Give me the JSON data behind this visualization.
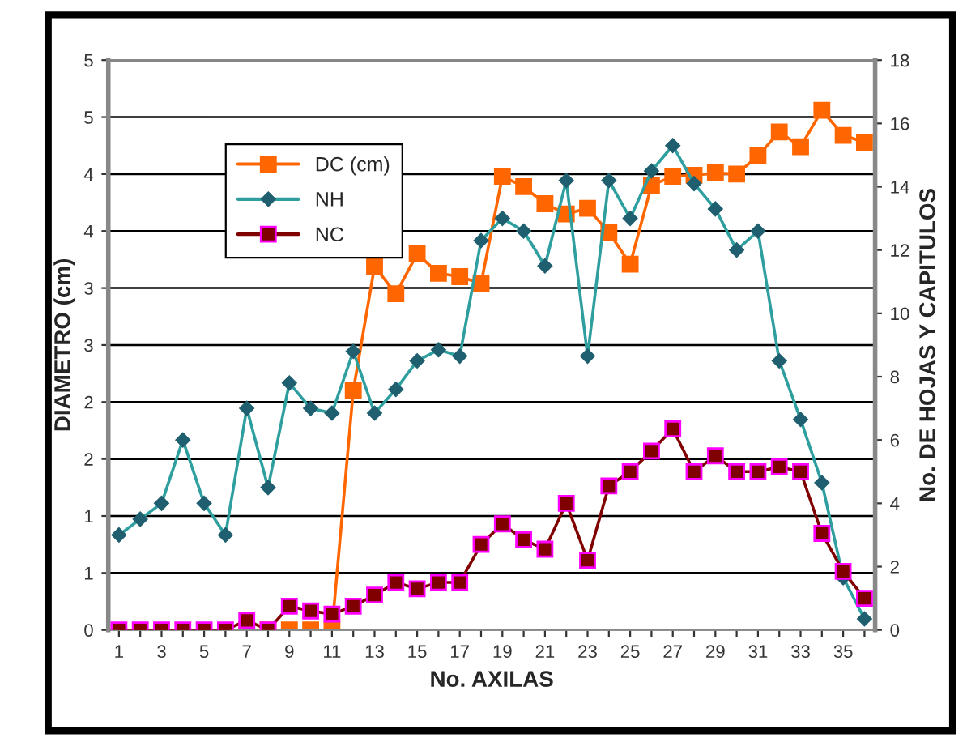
{
  "chart_data": {
    "type": "line",
    "xlabel": "No. AXILAS",
    "ylabel": "DIAMETRO (cm)",
    "y2label": "No. DE HOJAS Y CAPITULOS",
    "categories": [
      "1",
      null,
      "3",
      null,
      "5",
      null,
      "7",
      null,
      "9",
      null,
      "11",
      null,
      "13",
      null,
      "15",
      null,
      "17",
      null,
      "19",
      null,
      "21",
      null,
      "23",
      null,
      "25",
      null,
      "27",
      null,
      "29",
      null,
      "31",
      null,
      "33",
      null,
      "35",
      null
    ],
    "series": [
      {
        "name": "DC (cm)",
        "color": "#ff6600",
        "marker": "square",
        "values": [
          null,
          null,
          null,
          null,
          null,
          null,
          0,
          0,
          0,
          0,
          0,
          2.1,
          3.19,
          2.95,
          3.3,
          3.13,
          3.1,
          3.04,
          3.98,
          3.89,
          3.74,
          3.65,
          3.7,
          3.49,
          3.21,
          3.9,
          3.98,
          3.99,
          4.01,
          4.0,
          4.16,
          4.37,
          4.24,
          4.56,
          4.34,
          4.28
        ]
      },
      {
        "name": "NH",
        "color": "#2e9e9e",
        "marker": "diamond",
        "axis": "y2",
        "values": [
          3.0,
          3.5,
          4.0,
          6.0,
          4.0,
          3.0,
          7.0,
          4.5,
          7.8,
          7.0,
          6.85,
          8.8,
          6.85,
          7.6,
          8.5,
          8.85,
          8.65,
          12.3,
          13.0,
          12.6,
          11.5,
          14.2,
          8.65,
          14.2,
          13.0,
          14.5,
          15.3,
          14.1,
          13.3,
          12.0,
          12.6,
          8.5,
          6.65,
          4.65,
          1.65,
          0.35
        ]
      },
      {
        "name": "NC",
        "color": "#800000",
        "marker": "square",
        "axis": "y2",
        "values": [
          0,
          0,
          0,
          0,
          0,
          0,
          0.3,
          0,
          0.75,
          0.6,
          0.5,
          0.75,
          1.1,
          1.5,
          1.3,
          1.5,
          1.5,
          2.7,
          3.35,
          2.85,
          2.55,
          4.0,
          2.2,
          4.55,
          5.0,
          5.65,
          6.35,
          5.0,
          5.5,
          5.0,
          5.0,
          5.15,
          5.0,
          3.05,
          1.85,
          1.0
        ]
      }
    ],
    "ylim": [
      0,
      5
    ],
    "yticks": [
      0,
      {
        "value": 0.5,
        "label": "1"
      },
      {
        "value": 1,
        "label": "1"
      },
      {
        "value": 1.5,
        "label": "2"
      },
      {
        "value": 2,
        "label": "2"
      },
      {
        "value": 2.5,
        "label": "3"
      },
      {
        "value": 3,
        "label": "3"
      },
      {
        "value": 3.5,
        "label": "4"
      },
      {
        "value": 4,
        "label": "4"
      },
      {
        "value": 4.5,
        "label": "5"
      },
      {
        "value": 5,
        "label": "5"
      }
    ],
    "y2lim": [
      0,
      18
    ],
    "y2ticks": [
      0,
      2,
      4,
      6,
      8,
      10,
      12,
      14,
      16,
      18
    ],
    "grid": "y",
    "legend": "top left",
    "line_style": "solid"
  }
}
